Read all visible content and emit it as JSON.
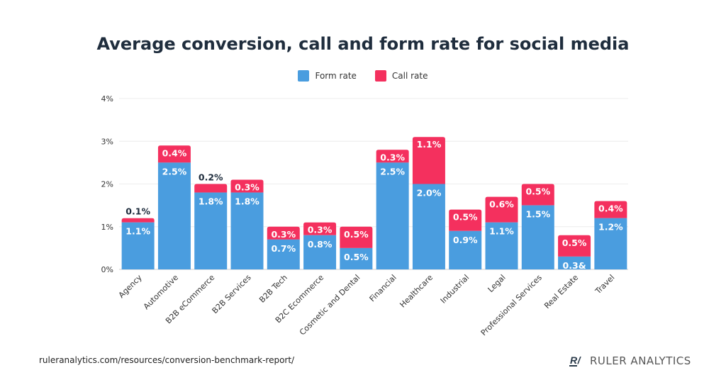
{
  "chart_data": {
    "type": "bar",
    "stacked": true,
    "title": "Average conversion, call and form rate for social media",
    "categories": [
      "Agency",
      "Automotive",
      "B2B eCommerce",
      "B2B Services",
      "B2B Tech",
      "B2C Ecommerce",
      "Cosmetic and Dental",
      "Financial",
      "Healthcare",
      "Industrial",
      "Legal",
      "Professional Services",
      "Real Estate",
      "Travel"
    ],
    "series": [
      {
        "name": "Form rate",
        "color": "#4a9ddf",
        "values": [
          1.1,
          2.5,
          1.8,
          1.8,
          0.7,
          0.8,
          0.5,
          2.5,
          2.0,
          0.9,
          1.1,
          1.5,
          0.3,
          1.2
        ],
        "labels": [
          "1.1%",
          "2.5%",
          "1.8%",
          "1.8%",
          "0.7%",
          "0.8%",
          "0.5%",
          "2.5%",
          "2.0%",
          "0.9%",
          "1.1%",
          "1.5%",
          "0.3&",
          "1.2%"
        ]
      },
      {
        "name": "Call rate",
        "color": "#f4305e",
        "values": [
          0.1,
          0.4,
          0.2,
          0.3,
          0.3,
          0.3,
          0.5,
          0.3,
          1.1,
          0.5,
          0.6,
          0.5,
          0.5,
          0.4
        ],
        "labels": [
          "0.1%",
          "0.4%",
          "0.2%",
          "0.3%",
          "0.3%",
          "0.3%",
          "0.5%",
          "0.3%",
          "1.1%",
          "0.5%",
          "0.6%",
          "0.5%",
          "0.5%",
          "0.4%"
        ]
      }
    ],
    "yticks": [
      "0%",
      "1%",
      "2%",
      "3%",
      "4%"
    ],
    "ylim": [
      0,
      4
    ],
    "grid": true,
    "legend": "top-center"
  },
  "footer": {
    "source": "ruleranalytics.com/resources/conversion-benchmark-report/",
    "brand": "RULER ANALYTICS",
    "brand_mark": "R/"
  }
}
